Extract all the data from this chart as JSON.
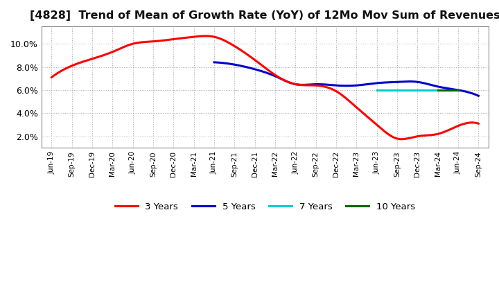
{
  "title": "[4828]  Trend of Mean of Growth Rate (YoY) of 12Mo Mov Sum of Revenues",
  "title_fontsize": 11.5,
  "ylim": [
    0.01,
    0.115
  ],
  "yticks": [
    0.02,
    0.04,
    0.06,
    0.08,
    0.1
  ],
  "ytick_labels": [
    "2.0%",
    "4.0%",
    "6.0%",
    "8.0%",
    "10.0%"
  ],
  "background_color": "#ffffff",
  "plot_bg_color": "#ffffff",
  "grid_color": "#aaaaaa",
  "legend_labels": [
    "3 Years",
    "5 Years",
    "7 Years",
    "10 Years"
  ],
  "legend_colors": [
    "#ff0000",
    "#0000cc",
    "#00cccc",
    "#006600"
  ],
  "line_width": 2.2,
  "x_labels": [
    "Jun-19",
    "Sep-19",
    "Dec-19",
    "Mar-20",
    "Jun-20",
    "Sep-20",
    "Dec-20",
    "Mar-21",
    "Jun-21",
    "Sep-21",
    "Dec-21",
    "Mar-22",
    "Jun-22",
    "Sep-22",
    "Dec-22",
    "Mar-23",
    "Jun-23",
    "Sep-23",
    "Dec-23",
    "Mar-24",
    "Jun-24",
    "Sep-24"
  ],
  "series_3yr": [
    0.071,
    0.081,
    0.087,
    0.093,
    0.1,
    0.102,
    0.104,
    0.106,
    0.106,
    0.098,
    0.086,
    0.073,
    0.065,
    0.064,
    0.059,
    0.045,
    0.03,
    0.018,
    0.02,
    0.022,
    0.029,
    0.031
  ],
  "series_5yr": [
    null,
    null,
    null,
    null,
    null,
    null,
    null,
    null,
    0.084,
    0.082,
    0.078,
    0.072,
    0.065,
    0.065,
    0.064,
    0.064,
    0.066,
    0.067,
    0.067,
    0.063,
    0.06,
    0.055
  ],
  "series_7yr": [
    null,
    null,
    null,
    null,
    null,
    null,
    null,
    null,
    null,
    null,
    null,
    null,
    null,
    null,
    null,
    null,
    0.06,
    0.06,
    0.06,
    0.06,
    0.06,
    null
  ],
  "series_10yr": [
    null,
    null,
    null,
    null,
    null,
    null,
    null,
    null,
    null,
    null,
    null,
    null,
    null,
    null,
    null,
    null,
    null,
    null,
    null,
    0.06,
    0.06,
    null
  ]
}
